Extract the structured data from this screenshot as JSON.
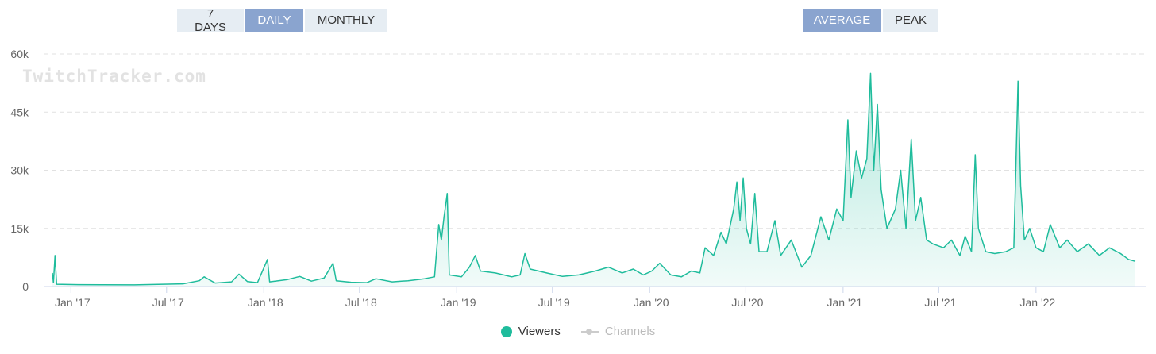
{
  "range_buttons": [
    {
      "label": "7 DAYS",
      "active": false
    },
    {
      "label": "DAILY",
      "active": true
    },
    {
      "label": "MONTHLY",
      "active": false
    }
  ],
  "mode_buttons": [
    {
      "label": "AVERAGE",
      "active": true
    },
    {
      "label": "PEAK",
      "active": false
    }
  ],
  "watermark": "TwitchTracker.com",
  "colors": {
    "viewers": "#1fbc9c",
    "channels": "#cccccc",
    "active_button": "#8aa4cf",
    "button": "#e6edf3"
  },
  "legend": {
    "viewers": "Viewers",
    "channels": "Channels"
  },
  "chart_data": {
    "type": "area",
    "x_range": [
      "2016-11-27",
      "2022-07-08"
    ],
    "ylim": [
      0,
      60000
    ],
    "y_ticks": [
      0,
      15000,
      30000,
      45000,
      60000
    ],
    "y_tick_labels": [
      "0",
      "15k",
      "30k",
      "45k",
      "60k"
    ],
    "x_tick_dates": [
      "2017-01-01",
      "2017-07-01",
      "2018-01-01",
      "2018-07-01",
      "2019-01-01",
      "2019-07-01",
      "2020-01-01",
      "2020-07-01",
      "2021-01-01",
      "2021-07-01",
      "2022-01-01"
    ],
    "x_tick_labels": [
      "Jan '17",
      "Jul '17",
      "Jan '18",
      "Jul '18",
      "Jan '19",
      "Jul '19",
      "Jan '20",
      "Jul '20",
      "Jan '21",
      "Jul '21",
      "Jan '22"
    ],
    "grid": "horizontal dashed",
    "legend_position": "bottom-center",
    "series": [
      {
        "name": "Viewers",
        "points": [
          [
            "2016-11-27",
            3500
          ],
          [
            "2016-11-29",
            1000
          ],
          [
            "2016-12-02",
            8000
          ],
          [
            "2016-12-05",
            600
          ],
          [
            "2017-01-15",
            500
          ],
          [
            "2017-03-01",
            450
          ],
          [
            "2017-05-01",
            420
          ],
          [
            "2017-06-15",
            550
          ],
          [
            "2017-08-01",
            700
          ],
          [
            "2017-09-01",
            1500
          ],
          [
            "2017-09-10",
            2500
          ],
          [
            "2017-10-01",
            900
          ],
          [
            "2017-11-01",
            1200
          ],
          [
            "2017-11-15",
            3200
          ],
          [
            "2017-12-01",
            1300
          ],
          [
            "2017-12-20",
            1000
          ],
          [
            "2018-01-08",
            7000
          ],
          [
            "2018-01-12",
            1200
          ],
          [
            "2018-02-15",
            1800
          ],
          [
            "2018-03-10",
            2600
          ],
          [
            "2018-04-01",
            1400
          ],
          [
            "2018-04-25",
            2200
          ],
          [
            "2018-05-12",
            6000
          ],
          [
            "2018-05-18",
            1500
          ],
          [
            "2018-06-15",
            1100
          ],
          [
            "2018-07-15",
            1000
          ],
          [
            "2018-08-01",
            2000
          ],
          [
            "2018-09-01",
            1200
          ],
          [
            "2018-10-01",
            1500
          ],
          [
            "2018-11-01",
            2000
          ],
          [
            "2018-11-20",
            2500
          ],
          [
            "2018-11-28",
            16000
          ],
          [
            "2018-12-03",
            12000
          ],
          [
            "2018-12-08",
            18000
          ],
          [
            "2018-12-14",
            24000
          ],
          [
            "2018-12-18",
            3000
          ],
          [
            "2019-01-10",
            2500
          ],
          [
            "2019-01-25",
            5000
          ],
          [
            "2019-02-05",
            8000
          ],
          [
            "2019-02-15",
            4000
          ],
          [
            "2019-03-15",
            3500
          ],
          [
            "2019-04-15",
            2500
          ],
          [
            "2019-05-01",
            3000
          ],
          [
            "2019-05-10",
            8500
          ],
          [
            "2019-05-20",
            4500
          ],
          [
            "2019-06-20",
            3500
          ],
          [
            "2019-07-20",
            2600
          ],
          [
            "2019-08-20",
            3000
          ],
          [
            "2019-09-20",
            4000
          ],
          [
            "2019-10-15",
            5000
          ],
          [
            "2019-11-10",
            3500
          ],
          [
            "2019-12-01",
            4500
          ],
          [
            "2019-12-20",
            3000
          ],
          [
            "2020-01-05",
            4000
          ],
          [
            "2020-01-20",
            6000
          ],
          [
            "2020-02-10",
            3000
          ],
          [
            "2020-03-01",
            2500
          ],
          [
            "2020-03-20",
            4000
          ],
          [
            "2020-04-05",
            3500
          ],
          [
            "2020-04-15",
            10000
          ],
          [
            "2020-05-01",
            8000
          ],
          [
            "2020-05-15",
            14000
          ],
          [
            "2020-05-25",
            11000
          ],
          [
            "2020-06-08",
            20000
          ],
          [
            "2020-06-14",
            27000
          ],
          [
            "2020-06-20",
            17000
          ],
          [
            "2020-06-26",
            28000
          ],
          [
            "2020-07-02",
            15000
          ],
          [
            "2020-07-10",
            11000
          ],
          [
            "2020-07-18",
            24000
          ],
          [
            "2020-07-26",
            9000
          ],
          [
            "2020-08-10",
            9000
          ],
          [
            "2020-08-25",
            17000
          ],
          [
            "2020-09-05",
            8000
          ],
          [
            "2020-09-25",
            12000
          ],
          [
            "2020-10-15",
            5000
          ],
          [
            "2020-11-01",
            8000
          ],
          [
            "2020-11-20",
            18000
          ],
          [
            "2020-12-05",
            12000
          ],
          [
            "2020-12-20",
            20000
          ],
          [
            "2021-01-01",
            17000
          ],
          [
            "2021-01-10",
            43000
          ],
          [
            "2021-01-16",
            23000
          ],
          [
            "2021-01-26",
            35000
          ],
          [
            "2021-02-05",
            28000
          ],
          [
            "2021-02-15",
            33000
          ],
          [
            "2021-02-22",
            55000
          ],
          [
            "2021-02-28",
            30000
          ],
          [
            "2021-03-07",
            47000
          ],
          [
            "2021-03-14",
            25000
          ],
          [
            "2021-03-25",
            15000
          ],
          [
            "2021-04-10",
            20000
          ],
          [
            "2021-04-20",
            30000
          ],
          [
            "2021-04-30",
            15000
          ],
          [
            "2021-05-10",
            38000
          ],
          [
            "2021-05-18",
            17000
          ],
          [
            "2021-05-28",
            23000
          ],
          [
            "2021-06-08",
            12000
          ],
          [
            "2021-06-20",
            11000
          ],
          [
            "2021-07-10",
            10000
          ],
          [
            "2021-07-25",
            12000
          ],
          [
            "2021-08-10",
            8000
          ],
          [
            "2021-08-20",
            13000
          ],
          [
            "2021-09-01",
            9000
          ],
          [
            "2021-09-08",
            34000
          ],
          [
            "2021-09-14",
            15000
          ],
          [
            "2021-09-28",
            9000
          ],
          [
            "2021-10-15",
            8500
          ],
          [
            "2021-11-05",
            9000
          ],
          [
            "2021-11-20",
            10000
          ],
          [
            "2021-11-28",
            53000
          ],
          [
            "2021-12-03",
            26000
          ],
          [
            "2021-12-10",
            12000
          ],
          [
            "2021-12-20",
            15000
          ],
          [
            "2022-01-01",
            10000
          ],
          [
            "2022-01-15",
            9000
          ],
          [
            "2022-01-28",
            16000
          ],
          [
            "2022-02-15",
            10000
          ],
          [
            "2022-03-01",
            12000
          ],
          [
            "2022-03-20",
            9000
          ],
          [
            "2022-04-10",
            11000
          ],
          [
            "2022-05-01",
            8000
          ],
          [
            "2022-05-20",
            10000
          ],
          [
            "2022-06-10",
            8500
          ],
          [
            "2022-06-25",
            7000
          ],
          [
            "2022-07-08",
            6500
          ]
        ]
      }
    ]
  }
}
